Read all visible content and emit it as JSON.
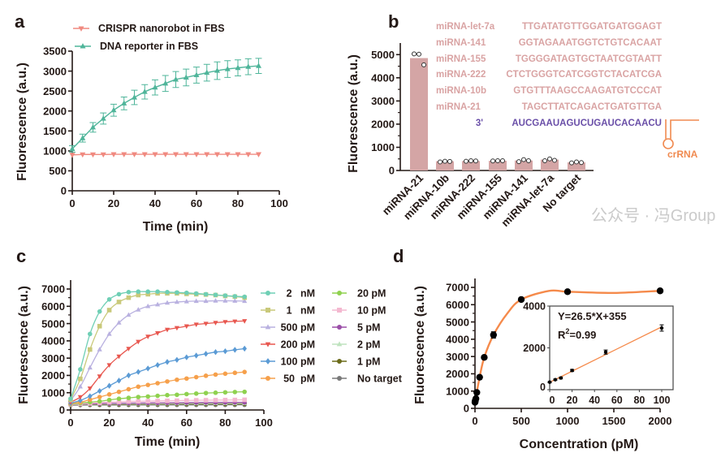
{
  "panels": {
    "a": "a",
    "b": "b",
    "c": "c",
    "d": "d"
  },
  "watermark": "公众号 · 冯Group",
  "chart_data": [
    {
      "id": "a",
      "type": "line",
      "xlabel": "Time (min)",
      "ylabel": "Fluorescence (a.u.)",
      "xlim": [
        0,
        100
      ],
      "xticks": [
        0,
        20,
        40,
        60,
        80,
        100
      ],
      "ylim": [
        0,
        3500
      ],
      "yticks": [
        0,
        500,
        1000,
        1500,
        2000,
        2500,
        3000,
        3500
      ],
      "x": [
        0,
        5,
        10,
        15,
        20,
        25,
        30,
        35,
        40,
        45,
        50,
        55,
        60,
        65,
        70,
        75,
        80,
        85,
        90
      ],
      "legend_position": "top-left",
      "series": [
        {
          "name": "CRISPR nanorobot in FBS",
          "color": "#f08a80",
          "marker": "triangle-down",
          "values": [
            900,
            910,
            910,
            910,
            915,
            915,
            915,
            915,
            915,
            915,
            915,
            915,
            915,
            915,
            915,
            915,
            915,
            915,
            915
          ],
          "errors": [
            20,
            15,
            15,
            15,
            15,
            15,
            15,
            15,
            15,
            15,
            15,
            15,
            15,
            15,
            15,
            15,
            15,
            15,
            15
          ]
        },
        {
          "name": "DNA reporter in FBS",
          "color": "#4fb59a",
          "marker": "triangle-up",
          "values": [
            1050,
            1320,
            1590,
            1810,
            2020,
            2190,
            2340,
            2480,
            2590,
            2690,
            2790,
            2840,
            2900,
            2960,
            3010,
            3050,
            3080,
            3110,
            3130
          ],
          "errors": [
            80,
            100,
            120,
            140,
            150,
            160,
            180,
            180,
            190,
            200,
            200,
            210,
            200,
            210,
            220,
            210,
            200,
            200,
            190
          ]
        }
      ]
    },
    {
      "id": "b",
      "type": "bar",
      "ylabel": "Fluorescence (a.u.)",
      "ylim": [
        0,
        5500
      ],
      "yticks": [
        0,
        1000,
        2000,
        3000,
        4000,
        5000
      ],
      "categories": [
        "miRNA-21",
        "miRNA-10b",
        "miRNA-222",
        "miRNA-155",
        "miRNA-141",
        "miRNA-let-7a",
        "No target"
      ],
      "values": [
        4850,
        400,
        410,
        420,
        430,
        470,
        350
      ],
      "replicates": [
        [
          5030,
          5020,
          4560
        ],
        [
          370,
          400,
          390
        ],
        [
          400,
          420,
          410
        ],
        [
          410,
          420,
          420
        ],
        [
          380,
          470,
          420
        ],
        [
          420,
          500,
          440
        ],
        [
          330,
          370,
          340
        ]
      ],
      "bar_color": "#d4a5a5",
      "sequences": [
        {
          "name": "miRNA-let-7a",
          "seq": "TTGATATGTTGGATGATGGAGT"
        },
        {
          "name": "miRNA-141",
          "seq": "GGTAGAAATGGTCTGTCACAAT"
        },
        {
          "name": "miRNA-155",
          "seq": "TGGGGATAGTGCTAATCGTAATT"
        },
        {
          "name": "miRNA-222",
          "seq": "CTCTGGGTCATCGGTCTACATCGA"
        },
        {
          "name": "miRNA-10b",
          "seq": "GTGTTTAAGCCAAGATGTCCCAT"
        },
        {
          "name": "miRNA-21",
          "seq": "TAGCTTATCAGACTGATGTTGA"
        }
      ],
      "crrna": {
        "end_label": "3'",
        "seq": "AUCGAAUAGUCUGAUCACAACU",
        "label": "crRNA",
        "color": "#f08a50",
        "seq_color": "#6a4fa8"
      }
    },
    {
      "id": "c",
      "type": "line",
      "xlabel": "Time (min)",
      "ylabel": "Fluorescence (a.u.)",
      "xlim": [
        0,
        100
      ],
      "xticks": [
        0,
        20,
        40,
        60,
        80,
        100
      ],
      "ylim": [
        0,
        7500
      ],
      "yticks": [
        0,
        1000,
        2000,
        3000,
        4000,
        5000,
        6000,
        7000
      ],
      "x": [
        0,
        5,
        10,
        15,
        20,
        25,
        30,
        35,
        40,
        45,
        50,
        55,
        60,
        65,
        70,
        75,
        80,
        85,
        90
      ],
      "legend_position": "right",
      "series": [
        {
          "name": "2   nM",
          "color": "#6fcfb5",
          "marker": "circle",
          "values": [
            650,
            2350,
            4400,
            5700,
            6400,
            6700,
            6820,
            6850,
            6850,
            6850,
            6820,
            6800,
            6780,
            6740,
            6700,
            6660,
            6620,
            6580,
            6550
          ]
        },
        {
          "name": "1   nM",
          "color": "#c9c97a",
          "marker": "square",
          "values": [
            600,
            1800,
            3500,
            4850,
            5780,
            6250,
            6500,
            6650,
            6700,
            6750,
            6750,
            6750,
            6720,
            6700,
            6680,
            6650,
            6600,
            6560,
            6500
          ]
        },
        {
          "name": "500 pM",
          "color": "#b9b1e0",
          "marker": "triangle-up",
          "values": [
            550,
            1350,
            2450,
            3500,
            4400,
            5050,
            5500,
            5800,
            6000,
            6100,
            6200,
            6250,
            6280,
            6300,
            6300,
            6320,
            6320,
            6310,
            6300
          ]
        },
        {
          "name": "200 pM",
          "color": "#e8574f",
          "marker": "triangle-down",
          "values": [
            450,
            750,
            1250,
            1950,
            2600,
            3100,
            3550,
            3950,
            4250,
            4450,
            4650,
            4750,
            4850,
            4950,
            5000,
            5050,
            5100,
            5130,
            5150
          ]
        },
        {
          "name": "100 pM",
          "color": "#5b9bd5",
          "marker": "diamond",
          "values": [
            400,
            550,
            800,
            1100,
            1400,
            1700,
            2000,
            2200,
            2400,
            2600,
            2780,
            2900,
            3050,
            3150,
            3250,
            3350,
            3400,
            3480,
            3550
          ]
        },
        {
          "name": "50  pM",
          "color": "#f6a04b",
          "marker": "circle",
          "values": [
            380,
            450,
            600,
            750,
            900,
            1050,
            1200,
            1350,
            1450,
            1550,
            1650,
            1750,
            1820,
            1900,
            1980,
            2050,
            2100,
            2150,
            2200
          ]
        },
        {
          "name": "20 pM",
          "color": "#8fd14f",
          "marker": "circle",
          "values": [
            350,
            400,
            450,
            500,
            580,
            650,
            700,
            750,
            780,
            820,
            860,
            880,
            920,
            950,
            980,
            1000,
            1020,
            1040,
            1050
          ]
        },
        {
          "name": "10 pM",
          "color": "#f4b8d0",
          "marker": "square",
          "values": [
            330,
            360,
            390,
            420,
            450,
            470,
            490,
            500,
            510,
            520,
            530,
            540,
            550,
            560,
            565,
            570,
            575,
            580,
            590
          ]
        },
        {
          "name": "5 pM",
          "color": "#9b4fa8",
          "marker": "circle",
          "values": [
            320,
            340,
            355,
            365,
            375,
            385,
            395,
            400,
            405,
            410,
            415,
            420,
            425,
            430,
            432,
            435,
            438,
            440,
            440
          ]
        },
        {
          "name": "2 pM",
          "color": "#bfe3bf",
          "marker": "triangle-up",
          "values": [
            310,
            325,
            335,
            345,
            350,
            355,
            360,
            365,
            370,
            372,
            375,
            378,
            380,
            382,
            384,
            386,
            388,
            390,
            390
          ]
        },
        {
          "name": "1 pM",
          "color": "#6b6b1a",
          "marker": "circle",
          "values": [
            300,
            310,
            315,
            320,
            325,
            330,
            335,
            338,
            340,
            342,
            344,
            346,
            348,
            350,
            350,
            352,
            352,
            354,
            355
          ]
        },
        {
          "name": "No target",
          "color": "#7a7a7a",
          "marker": "circle",
          "values": [
            280,
            285,
            288,
            290,
            290,
            292,
            292,
            294,
            294,
            295,
            295,
            296,
            296,
            297,
            297,
            298,
            298,
            298,
            300
          ]
        }
      ]
    },
    {
      "id": "d",
      "type": "scatter",
      "xlabel": "Concentration (pM)",
      "ylabel": "Fluorescence (a.u.)",
      "xlim": [
        0,
        2000
      ],
      "xticks": [
        0,
        500,
        1000,
        1500,
        2000
      ],
      "ylim": [
        0,
        7500
      ],
      "yticks": [
        0,
        1000,
        2000,
        3000,
        4000,
        5000,
        6000,
        7000
      ],
      "x": [
        0,
        1,
        2,
        5,
        10,
        20,
        50,
        100,
        200,
        500,
        1000,
        2000
      ],
      "values": [
        350,
        380,
        420,
        480,
        560,
        920,
        1800,
        2950,
        4250,
        6300,
        6750,
        6800
      ],
      "errors": [
        40,
        40,
        40,
        40,
        40,
        60,
        80,
        80,
        180,
        60,
        60,
        60
      ],
      "fit_color": "#f58a4b",
      "inset": {
        "type": "scatter",
        "xlim": [
          0,
          100
        ],
        "xticks": [
          0,
          20,
          40,
          60,
          80,
          100
        ],
        "ylim": [
          0,
          4000
        ],
        "yticks": [
          0,
          2000,
          4000
        ],
        "x": [
          0,
          5,
          10,
          20,
          50,
          100
        ],
        "values": [
          360,
          480,
          560,
          920,
          1800,
          2950
        ],
        "errors": [
          30,
          30,
          40,
          50,
          100,
          150
        ],
        "fit": {
          "slope": 26.5,
          "intercept": 355
        },
        "equation": "Y=26.5*X+355",
        "r2_label": "R",
        "r2_sup": "2",
        "r2_value": "=0.99"
      }
    }
  ]
}
